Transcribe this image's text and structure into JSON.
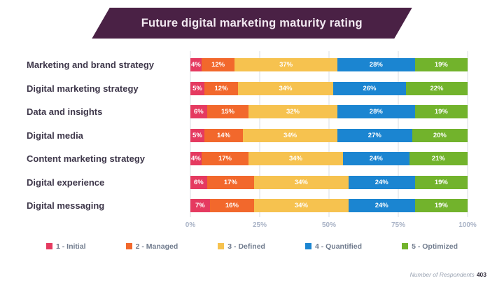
{
  "title": "Future digital marketing maturity rating",
  "colors": {
    "banner": "#4a2145",
    "banner_text": "#f2e9f1",
    "row_label": "#3e374a",
    "gridline": "#d9dde3",
    "axis_text": "#a9b3c6",
    "legend_text": "#717c8e"
  },
  "chart_data": {
    "type": "bar",
    "orientation": "horizontal",
    "stacked": true,
    "title": "Future digital marketing maturity rating",
    "categories": [
      "Marketing and brand strategy",
      "Digital marketing strategy",
      "Data and insights",
      "Digital media",
      "Content marketing strategy",
      "Digital experience",
      "Digital messaging"
    ],
    "series": [
      {
        "key": "initial",
        "name": "1 - Initial",
        "color": "#e53a60",
        "values": [
          4,
          5,
          6,
          5,
          4,
          6,
          7
        ]
      },
      {
        "key": "managed",
        "name": "2 - Managed",
        "color": "#f2682c",
        "values": [
          12,
          12,
          15,
          14,
          17,
          17,
          16
        ]
      },
      {
        "key": "defined",
        "name": "3 - Defined",
        "color": "#f6c24f",
        "values": [
          37,
          34,
          32,
          34,
          34,
          34,
          34
        ]
      },
      {
        "key": "quantified",
        "name": "4 - Quantified",
        "color": "#1b85d1",
        "values": [
          28,
          26,
          28,
          27,
          24,
          24,
          24
        ]
      },
      {
        "key": "optimized",
        "name": "5 - Optimized",
        "color": "#72b32c",
        "values": [
          19,
          22,
          19,
          20,
          21,
          19,
          19
        ]
      }
    ],
    "value_suffix": "%",
    "x_ticks": [
      "0%",
      "25%",
      "50%",
      "75%",
      "100%"
    ],
    "xlim": [
      0,
      100
    ],
    "grid": true,
    "legend_position": "bottom"
  },
  "footnote": {
    "label": "Number of Respondents",
    "value": "403"
  }
}
